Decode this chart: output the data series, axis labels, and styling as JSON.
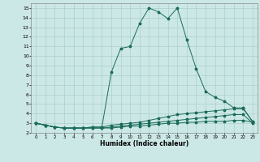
{
  "xlabel": "Humidex (Indice chaleur)",
  "ylabel": "",
  "background_color": "#cce8e6",
  "grid_color": "#aacfcd",
  "line_color": "#1a6b5a",
  "xlim": [
    -0.5,
    23.5
  ],
  "ylim": [
    2,
    15.5
  ],
  "xticks": [
    0,
    1,
    2,
    3,
    4,
    5,
    6,
    7,
    8,
    9,
    10,
    11,
    12,
    13,
    14,
    15,
    16,
    17,
    18,
    19,
    20,
    21,
    22,
    23
  ],
  "yticks": [
    2,
    3,
    4,
    5,
    6,
    7,
    8,
    9,
    10,
    11,
    12,
    13,
    14,
    15
  ],
  "series": [
    {
      "x": [
        0,
        1,
        2,
        3,
        4,
        5,
        6,
        7,
        8,
        9,
        10,
        11,
        12,
        13,
        14,
        15,
        16,
        17,
        18,
        19,
        20,
        21,
        22,
        23
      ],
      "y": [
        3.0,
        2.8,
        2.6,
        2.5,
        2.5,
        2.5,
        2.6,
        2.6,
        8.3,
        10.8,
        11.0,
        13.4,
        15.0,
        14.6,
        13.9,
        15.0,
        11.7,
        8.7,
        6.3,
        5.7,
        5.3,
        4.6,
        4.6,
        3.1
      ]
    },
    {
      "x": [
        0,
        1,
        2,
        3,
        4,
        5,
        6,
        7,
        8,
        9,
        10,
        11,
        12,
        13,
        14,
        15,
        16,
        17,
        18,
        19,
        20,
        21,
        22,
        23
      ],
      "y": [
        3.0,
        2.8,
        2.6,
        2.5,
        2.5,
        2.5,
        2.6,
        2.6,
        2.8,
        2.9,
        3.0,
        3.1,
        3.3,
        3.5,
        3.7,
        3.9,
        4.0,
        4.1,
        4.2,
        4.3,
        4.4,
        4.5,
        4.5,
        3.2
      ]
    },
    {
      "x": [
        0,
        1,
        2,
        3,
        4,
        5,
        6,
        7,
        8,
        9,
        10,
        11,
        12,
        13,
        14,
        15,
        16,
        17,
        18,
        19,
        20,
        21,
        22,
        23
      ],
      "y": [
        3.0,
        2.8,
        2.6,
        2.5,
        2.5,
        2.5,
        2.5,
        2.5,
        2.6,
        2.7,
        2.8,
        2.9,
        3.0,
        3.1,
        3.2,
        3.3,
        3.4,
        3.5,
        3.6,
        3.7,
        3.8,
        3.9,
        3.9,
        3.0
      ]
    },
    {
      "x": [
        0,
        1,
        2,
        3,
        4,
        5,
        6,
        7,
        8,
        9,
        10,
        11,
        12,
        13,
        14,
        15,
        16,
        17,
        18,
        19,
        20,
        21,
        22,
        23
      ],
      "y": [
        3.0,
        2.8,
        2.6,
        2.5,
        2.5,
        2.5,
        2.5,
        2.5,
        2.5,
        2.6,
        2.7,
        2.7,
        2.8,
        2.9,
        3.0,
        3.0,
        3.1,
        3.1,
        3.2,
        3.2,
        3.2,
        3.3,
        3.3,
        3.1
      ]
    }
  ]
}
